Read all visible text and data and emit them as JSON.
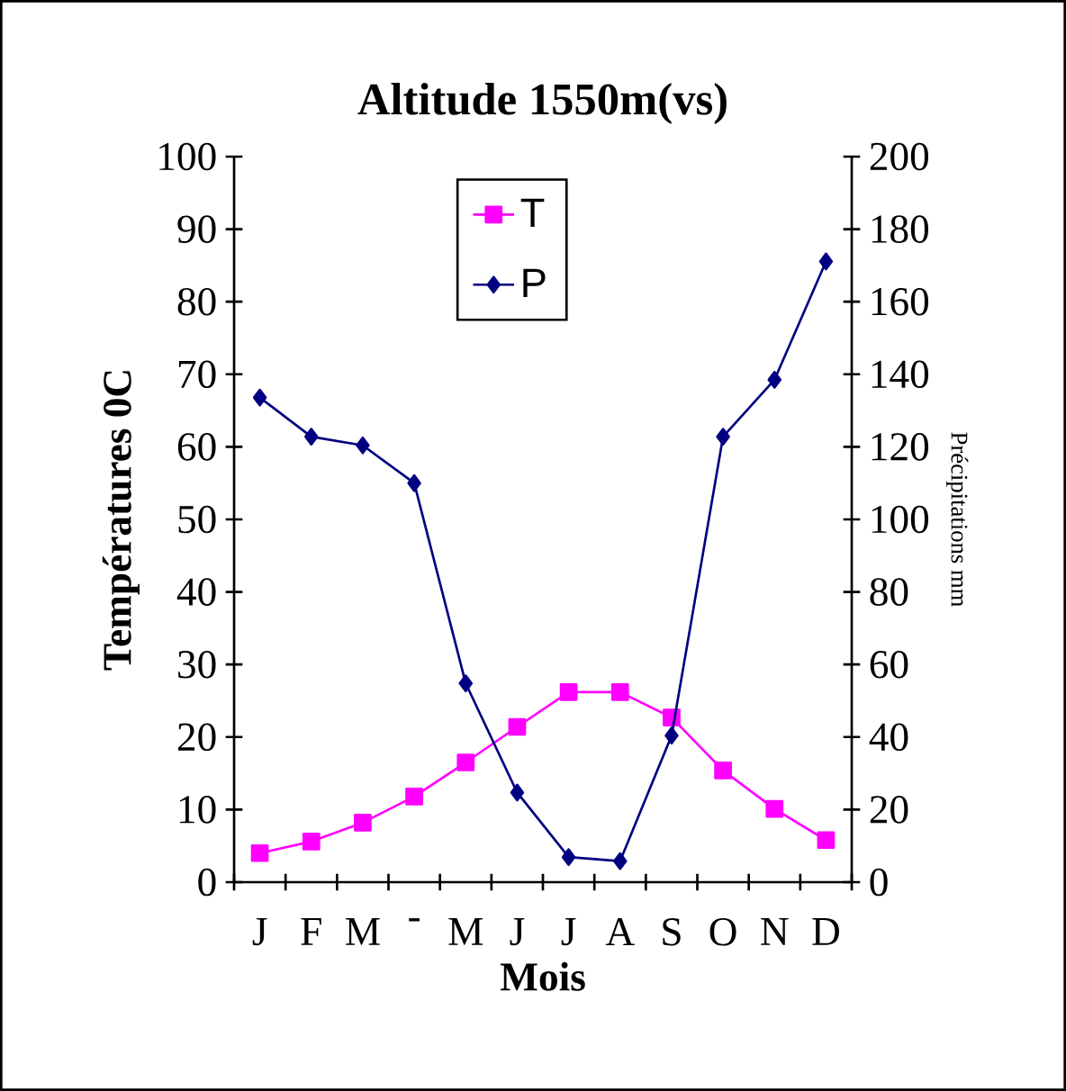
{
  "chart_data": {
    "type": "line",
    "title": "Altitude 1550m(vs)",
    "xlabel": "Mois",
    "ylabel": "Températures 0C",
    "y2label": "Précipitations mm",
    "categories": [
      "J",
      "F",
      "M",
      "-",
      "M",
      "J",
      "J",
      "A",
      "S",
      "O",
      "N",
      "D"
    ],
    "series": [
      {
        "name": "T",
        "color": "#ff00ff",
        "marker": "square",
        "values": [
          4.0,
          5.6,
          8.2,
          11.8,
          16.5,
          21.4,
          26.2,
          26.2,
          22.7,
          15.4,
          10.1,
          5.8
        ]
      },
      {
        "name": "P",
        "color": "#000080",
        "marker": "diamond",
        "axis": "y2",
        "values": [
          133.6,
          122.8,
          120.4,
          110,
          54.8,
          24.7,
          6.9,
          5.8,
          40.4,
          122.8,
          138.5,
          171.1
        ]
      }
    ],
    "ylim": [
      0,
      100
    ],
    "yticks": [
      0,
      10,
      20,
      30,
      40,
      50,
      60,
      70,
      80,
      90,
      100
    ],
    "y2lim": [
      0,
      200
    ],
    "y2ticks": [
      0,
      20,
      40,
      60,
      80,
      100,
      120,
      140,
      160,
      180,
      200
    ],
    "grid": false,
    "legend": "top"
  }
}
